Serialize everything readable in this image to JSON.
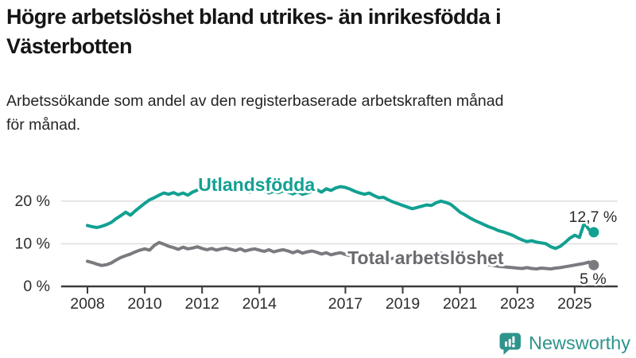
{
  "header": {
    "title": "Högre arbetslöshet bland utrikes- än inrikesfödda i\nVästerbotten",
    "subtitle": "Arbetssökande som andel av den registerbaserade arbetskraften månad\nför månad."
  },
  "footer": {
    "brand": "Newsworthy",
    "logo_icon": "speech-bubble-with-bar-chart"
  },
  "colors": {
    "series_foreign_born": "#12A091",
    "series_total": "#7A7A7F",
    "series_total_label": "#6A6A70",
    "axis": "#3C3C3C",
    "tick_text": "#2D2D2D",
    "grid": "#DBDBDB",
    "end_label_text": "#2B2B2B",
    "brand_teal": "#2E948C",
    "background": "#FFFFFF"
  },
  "chart_data": {
    "type": "line",
    "title": "Högre arbetslöshet bland utrikes- än inrikesfödda i Västerbotten",
    "subtitle": "Arbetssökande som andel av den registerbaserade arbetskraften månad för månad.",
    "xlabel": "",
    "ylabel": "",
    "grid": "horizontal",
    "legend_position": "inline-labels",
    "x_unit": "year",
    "x_start": 2008.0,
    "x_step_years": 0.1666667,
    "xlim": [
      2007.08,
      2026.5
    ],
    "ylim": [
      0,
      26
    ],
    "x_ticks": [
      2008,
      2010,
      2012,
      2014,
      2017,
      2019,
      2021,
      2023,
      2025
    ],
    "y_ticks": [
      {
        "value": 0,
        "label": "0 %"
      },
      {
        "value": 10,
        "label": "10 %"
      },
      {
        "value": 20,
        "label": "20 %"
      }
    ],
    "series": [
      {
        "name": "Utlandsfödda",
        "color": "#12A091",
        "label": {
          "text": "Utlandsfödda",
          "x": 2013.9,
          "y": 23.9
        },
        "end_label": {
          "text": "12,7 %",
          "position": "above"
        },
        "end_value": 12.7,
        "values": [
          14.3,
          14.0,
          13.8,
          14.1,
          14.5,
          15.0,
          15.9,
          16.6,
          17.4,
          16.7,
          17.7,
          18.6,
          19.5,
          20.3,
          20.8,
          21.4,
          21.9,
          21.6,
          22.0,
          21.5,
          21.9,
          21.4,
          22.1,
          22.6,
          23.0,
          23.4,
          23.1,
          23.5,
          23.1,
          22.8,
          23.3,
          22.9,
          23.2,
          22.5,
          22.1,
          22.6,
          23.0,
          22.5,
          21.9,
          22.3,
          22.0,
          22.4,
          22.1,
          21.7,
          22.2,
          21.6,
          21.9,
          22.3,
          22.7,
          22.1,
          22.9,
          22.5,
          23.1,
          23.4,
          23.2,
          22.8,
          22.3,
          21.9,
          21.6,
          21.9,
          21.3,
          20.8,
          20.9,
          20.3,
          19.8,
          19.4,
          19.0,
          18.6,
          18.2,
          18.5,
          18.8,
          19.1,
          19.0,
          19.6,
          20.0,
          19.7,
          19.3,
          18.4,
          17.4,
          16.8,
          16.1,
          15.5,
          15.0,
          14.5,
          14.0,
          13.6,
          13.1,
          12.8,
          12.4,
          12.0,
          11.4,
          10.9,
          10.5,
          10.7,
          10.4,
          10.2,
          10.0,
          9.3,
          8.9,
          9.4,
          10.3,
          11.3,
          12.0,
          11.5,
          14.9,
          13.3,
          12.7
        ]
      },
      {
        "name": "Total arbetslöshet",
        "color": "#7A7A7F",
        "label_color": "#6A6A70",
        "label": {
          "text": "Total arbetslöshet",
          "x": 2019.8,
          "y": 6.7
        },
        "end_label": {
          "text": "5 %",
          "position": "below"
        },
        "end_value": 5,
        "values": [
          5.9,
          5.6,
          5.2,
          4.9,
          5.1,
          5.5,
          6.2,
          6.8,
          7.2,
          7.6,
          8.1,
          8.5,
          8.8,
          8.5,
          9.6,
          10.3,
          9.9,
          9.4,
          9.1,
          8.7,
          9.2,
          8.8,
          9.0,
          9.3,
          8.9,
          8.6,
          8.9,
          8.5,
          8.8,
          9.0,
          8.7,
          8.4,
          8.8,
          8.3,
          8.6,
          8.8,
          8.5,
          8.2,
          8.6,
          8.1,
          8.4,
          8.6,
          8.3,
          7.9,
          8.3,
          7.8,
          8.1,
          8.3,
          8.0,
          7.6,
          7.9,
          7.4,
          7.7,
          7.9,
          7.5,
          7.2,
          7.5,
          7.0,
          7.2,
          7.4,
          7.0,
          6.7,
          6.9,
          6.4,
          6.6,
          6.7,
          6.4,
          6.2,
          6.5,
          6.2,
          6.5,
          6.7,
          6.6,
          7.3,
          7.8,
          7.5,
          7.2,
          6.9,
          6.6,
          6.3,
          6.0,
          5.7,
          5.5,
          5.3,
          5.1,
          4.9,
          4.7,
          4.6,
          4.5,
          4.4,
          4.3,
          4.2,
          4.4,
          4.2,
          4.1,
          4.3,
          4.2,
          4.1,
          4.3,
          4.4,
          4.6,
          4.8,
          5.0,
          5.2,
          5.4,
          5.7,
          5.0
        ]
      }
    ]
  }
}
